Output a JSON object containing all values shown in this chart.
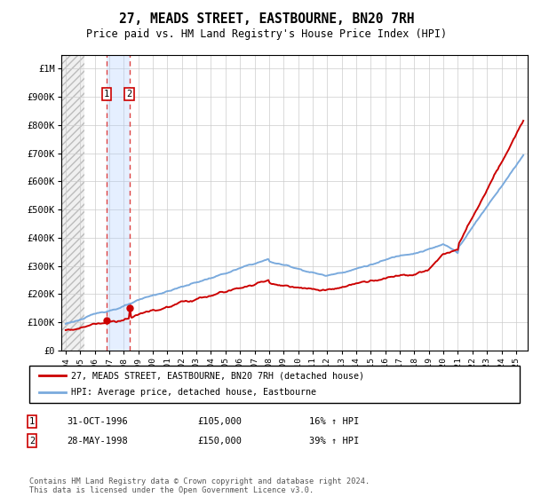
{
  "title": "27, MEADS STREET, EASTBOURNE, BN20 7RH",
  "subtitle": "Price paid vs. HM Land Registry's House Price Index (HPI)",
  "legend_line1": "27, MEADS STREET, EASTBOURNE, BN20 7RH (detached house)",
  "legend_line2": "HPI: Average price, detached house, Eastbourne",
  "footer": "Contains HM Land Registry data © Crown copyright and database right 2024.\nThis data is licensed under the Open Government Licence v3.0.",
  "table_rows": [
    [
      "1",
      "31-OCT-1996",
      "£105,000",
      "16% ↑ HPI"
    ],
    [
      "2",
      "28-MAY-1998",
      "£150,000",
      "39% ↑ HPI"
    ]
  ],
  "sale_dates_num": [
    1996.833,
    1998.389
  ],
  "sale_prices": [
    105000,
    150000
  ],
  "hpi_color": "#7aaadd",
  "price_color": "#cc0000",
  "marker_color": "#cc0000",
  "vline_color": "#dd4444",
  "shade_color": "#aaccff",
  "ylim": [
    0,
    1050000
  ],
  "yticks": [
    0,
    100000,
    200000,
    300000,
    400000,
    500000,
    600000,
    700000,
    800000,
    900000,
    1000000
  ],
  "ytick_labels": [
    "£0",
    "£100K",
    "£200K",
    "£300K",
    "£400K",
    "£500K",
    "£600K",
    "£700K",
    "£800K",
    "£900K",
    "£1M"
  ],
  "xlim_start": 1993.7,
  "xlim_end": 2025.8,
  "xticks": [
    1994,
    1995,
    1996,
    1997,
    1998,
    1999,
    2000,
    2001,
    2002,
    2003,
    2004,
    2005,
    2006,
    2007,
    2008,
    2009,
    2010,
    2011,
    2012,
    2013,
    2014,
    2015,
    2016,
    2017,
    2018,
    2019,
    2020,
    2021,
    2022,
    2023,
    2024,
    2025
  ]
}
